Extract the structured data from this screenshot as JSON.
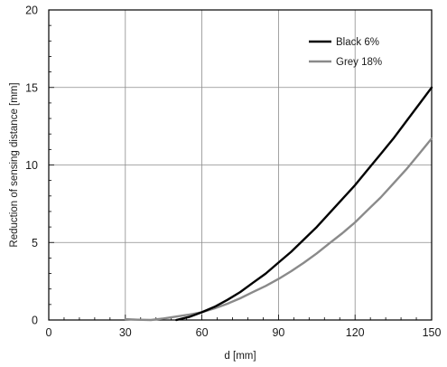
{
  "chart_data": {
    "type": "line",
    "xlabel": "d [mm]",
    "ylabel": "Reduction of sensing distance [mm]",
    "xlim": [
      0,
      150
    ],
    "ylim": [
      0,
      20
    ],
    "xticks": [
      0,
      30,
      60,
      90,
      120,
      150
    ],
    "yticks": [
      0,
      5,
      10,
      15,
      20
    ],
    "grid": true,
    "legend": "top-right",
    "series": [
      {
        "name": "Black 6%",
        "color": "#000000",
        "x": [
          50,
          55,
          60,
          65,
          70,
          75,
          80,
          85,
          90,
          95,
          100,
          105,
          110,
          115,
          120,
          125,
          130,
          135,
          140,
          145,
          150
        ],
        "y": [
          0,
          0.2,
          0.5,
          0.85,
          1.3,
          1.8,
          2.4,
          3.0,
          3.7,
          4.4,
          5.2,
          6.0,
          6.9,
          7.8,
          8.7,
          9.7,
          10.7,
          11.7,
          12.8,
          13.9,
          15.0
        ]
      },
      {
        "name": "Grey 18%",
        "color": "#8a8a8a",
        "x": [
          30,
          35,
          40,
          45,
          50,
          55,
          60,
          65,
          70,
          75,
          80,
          85,
          90,
          95,
          100,
          105,
          110,
          115,
          120,
          125,
          130,
          135,
          140,
          145,
          150
        ],
        "y": [
          0.05,
          0.02,
          0,
          0.1,
          0.22,
          0.35,
          0.5,
          0.75,
          1.05,
          1.4,
          1.8,
          2.2,
          2.65,
          3.15,
          3.7,
          4.3,
          4.95,
          5.6,
          6.3,
          7.1,
          7.9,
          8.8,
          9.7,
          10.7,
          11.7
        ]
      }
    ]
  }
}
